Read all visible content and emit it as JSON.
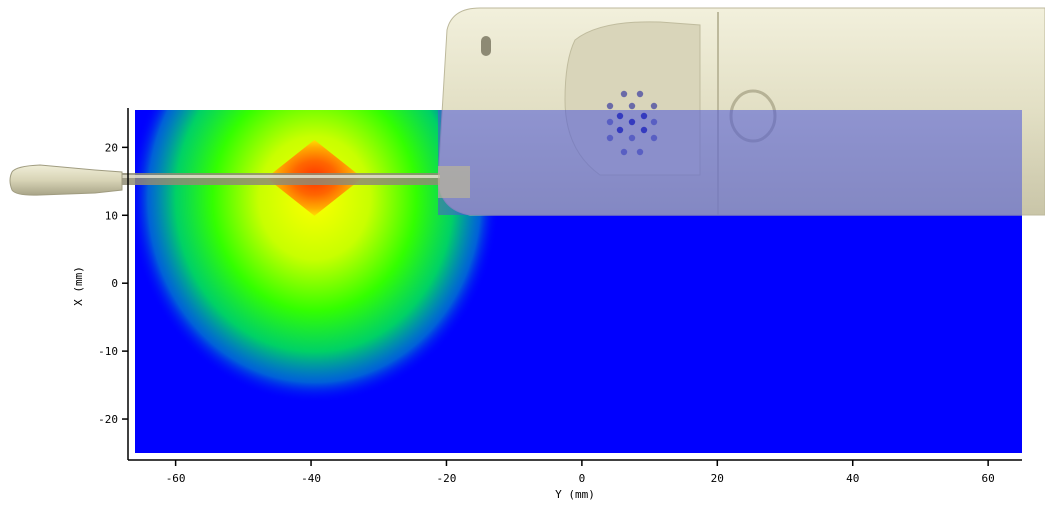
{
  "chart_data": {
    "type": "heatmap",
    "title": "",
    "xlabel": "Y  (mm)",
    "ylabel": "X  (mm)",
    "xlim": [
      -66,
      65
    ],
    "ylim": [
      -25,
      25.5
    ],
    "x_ticks": [
      -60,
      -40,
      -20,
      0,
      20,
      40,
      60
    ],
    "y_ticks": [
      -20,
      -10,
      0,
      10,
      20
    ],
    "x_tick_labels": [
      "-60",
      "-40",
      "-20",
      "0",
      "20",
      "40",
      "60"
    ],
    "y_tick_labels": [
      "-20",
      "-10",
      "0",
      "10",
      "20"
    ],
    "grid": false,
    "background_color": "#0000ff",
    "hotspot": {
      "center_y_mm": -39.5,
      "center_x_mm": 15.5,
      "peak_color": "#ff3300",
      "color_scale": [
        "#0000ff",
        "#00ffff",
        "#00ff00",
        "#ffff00",
        "#ff8800",
        "#ff2200"
      ]
    },
    "overlay": {
      "object": "mobile-phone",
      "antenna_row_x_mm": 15.5
    }
  }
}
